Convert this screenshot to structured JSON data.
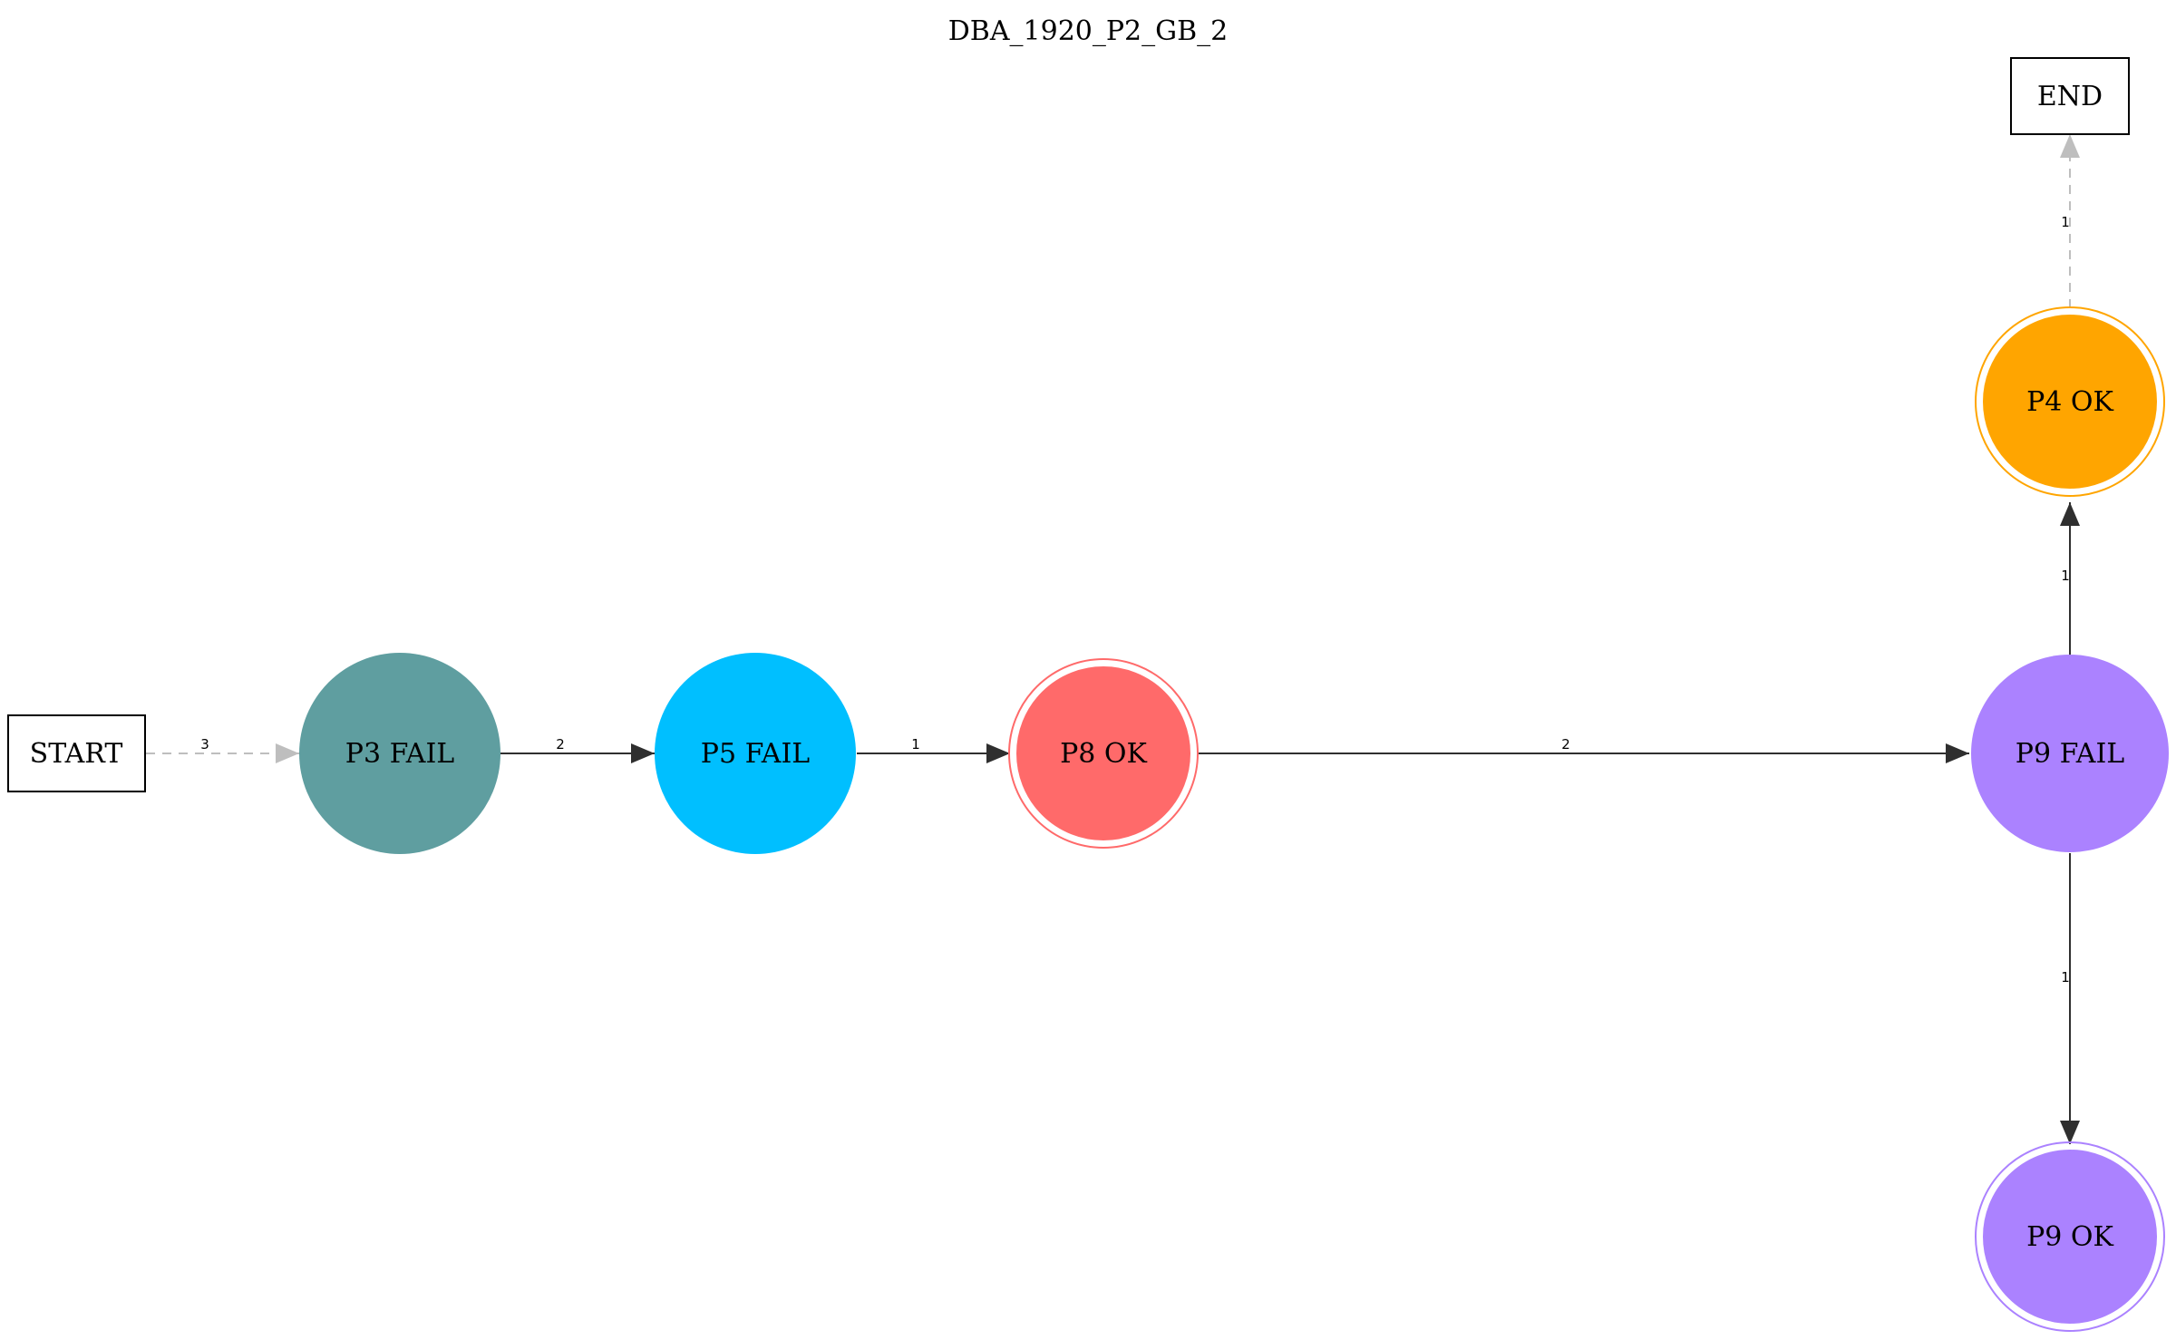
{
  "title": "DBA_1920_P2_GB_2",
  "nodes": {
    "start": {
      "label": "START",
      "shape": "box"
    },
    "end": {
      "label": "END",
      "shape": "box"
    },
    "p3_fail": {
      "label": "P3 FAIL",
      "shape": "circle",
      "fill": "#5f9ea0"
    },
    "p5_fail": {
      "label": "P5 FAIL",
      "shape": "circle",
      "fill": "#00bfff"
    },
    "p8_ok": {
      "label": "P8 OK",
      "shape": "doublecircle",
      "fill": "#ff6a6a",
      "stroke": "#ff6a6a"
    },
    "p9_fail": {
      "label": "P9 FAIL",
      "shape": "circle",
      "fill": "#ab82ff"
    },
    "p4_ok": {
      "label": "P4 OK",
      "shape": "doublecircle",
      "fill": "#ffa500",
      "stroke": "#ffa500"
    },
    "p9_ok": {
      "label": "P9 OK",
      "shape": "doublecircle",
      "fill": "#ab82ff",
      "stroke": "#ab82ff"
    }
  },
  "edges": [
    {
      "from": "START",
      "to": "P3 FAIL",
      "label": "3",
      "style": "dashed",
      "color": "#bebebe"
    },
    {
      "from": "P3 FAIL",
      "to": "P5 FAIL",
      "label": "2",
      "style": "solid",
      "color": "#2f2f2f"
    },
    {
      "from": "P5 FAIL",
      "to": "P8 OK",
      "label": "1",
      "style": "solid",
      "color": "#2f2f2f"
    },
    {
      "from": "P8 OK",
      "to": "P9 FAIL",
      "label": "2",
      "style": "solid",
      "color": "#2f2f2f"
    },
    {
      "from": "P9 FAIL",
      "to": "P4 OK",
      "label": "1",
      "style": "solid",
      "color": "#2f2f2f"
    },
    {
      "from": "P4 OK",
      "to": "END",
      "label": "1",
      "style": "dashed",
      "color": "#bebebe"
    },
    {
      "from": "P9 FAIL",
      "to": "P9 OK",
      "label": "1",
      "style": "solid",
      "color": "#2f2f2f"
    }
  ]
}
